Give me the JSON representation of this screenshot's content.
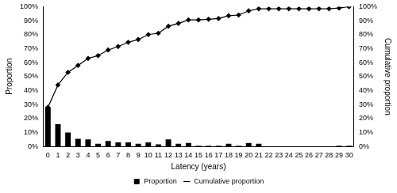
{
  "chart_data": {
    "type": "bar",
    "x_label": "Latency (years)",
    "y_label": "Proportion",
    "y2_label": "Cumulative proportion",
    "categories": [
      "0",
      "1",
      "2",
      "3",
      "4",
      "5",
      "6",
      "7",
      "8",
      "9",
      "10",
      "11",
      "12",
      "13",
      "14",
      "15",
      "16",
      "17",
      "18",
      "19",
      "20",
      "21",
      "22",
      "23",
      "24",
      "25",
      "26",
      "27",
      "28",
      "29",
      "30"
    ],
    "series": [
      {
        "name": "Proportion",
        "type": "bar",
        "color": "#000000",
        "values": [
          28,
          16,
          10,
          5.5,
          5,
          2,
          4,
          3,
          3,
          2,
          3,
          1.5,
          5,
          2,
          2.5,
          0.5,
          0.5,
          0.5,
          2,
          0.5,
          2.5,
          2,
          0,
          0,
          0,
          0,
          0,
          0,
          0,
          0.5,
          0.5
        ]
      },
      {
        "name": "Cumulative proportion",
        "type": "line",
        "color": "#000000",
        "marker": "diamond",
        "axis": "y2",
        "values": [
          28,
          44,
          53,
          58,
          63,
          65,
          69,
          71.5,
          74.5,
          76.5,
          80,
          81,
          86,
          88,
          90.5,
          90.5,
          91,
          91.5,
          93.5,
          94,
          97,
          98.5,
          98.5,
          98.5,
          98.5,
          98.5,
          98.5,
          98.5,
          98.5,
          99,
          100
        ]
      }
    ],
    "ylim": [
      0,
      100
    ],
    "yticks": [
      {
        "value": 0,
        "label": "0%"
      },
      {
        "value": 10,
        "label": "10%"
      },
      {
        "value": 20,
        "label": "20%"
      },
      {
        "value": 30,
        "label": "30%"
      },
      {
        "value": 40,
        "label": "40%"
      },
      {
        "value": 50,
        "label": "50%"
      },
      {
        "value": 60,
        "label": "60%"
      },
      {
        "value": 70,
        "label": "70%"
      },
      {
        "value": 80,
        "label": "80%"
      },
      {
        "value": 90,
        "label": "90%"
      },
      {
        "value": 100,
        "label": "100%"
      }
    ],
    "y2lim": [
      0,
      100
    ],
    "y2ticks": [
      {
        "value": 0,
        "label": "0%"
      },
      {
        "value": 10,
        "label": "10%"
      },
      {
        "value": 20,
        "label": "20%"
      },
      {
        "value": 30,
        "label": "30%"
      },
      {
        "value": 40,
        "label": "40%"
      },
      {
        "value": 50,
        "label": "50%"
      },
      {
        "value": 60,
        "label": "60%"
      },
      {
        "value": 70,
        "label": "70%"
      },
      {
        "value": 80,
        "label": "80%"
      },
      {
        "value": 90,
        "label": "90%"
      },
      {
        "value": 100,
        "label": "100%"
      }
    ],
    "grid": false,
    "legend": "bottom"
  }
}
